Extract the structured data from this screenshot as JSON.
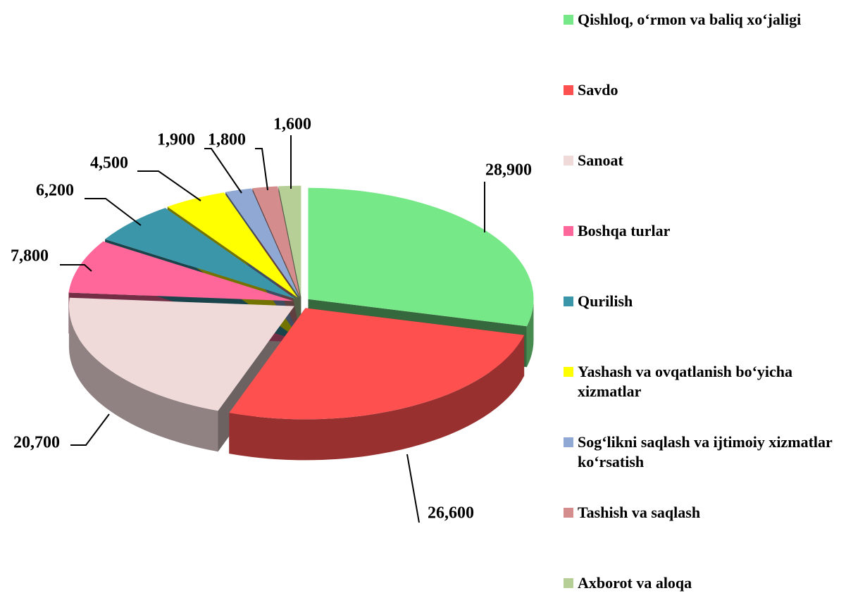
{
  "chart_data": {
    "type": "pie",
    "categories": [
      "Qishloq, o‘rmon va baliq xo‘jaligi",
      "Savdo",
      "Sanoat",
      "Boshqa turlar",
      "Qurilish",
      "Yashash va ovqatlanish bo‘yicha xizmatlar",
      "Sog‘likni saqlash va ijtimoiy xizmatlar ko‘rsatish",
      "Tashish va saqlash",
      "Axborot va aloqa"
    ],
    "values": [
      28900,
      26600,
      20700,
      7800,
      6200,
      4500,
      1900,
      1800,
      1600
    ],
    "value_labels": [
      "28,900",
      "26,600",
      "20,700",
      "7,800",
      "6,200",
      "4,500",
      "1,900",
      "1,800",
      "1,600"
    ],
    "colors": [
      "#77e887",
      "#ff5050",
      "#f0d9d9",
      "#ff6699",
      "#3a96a8",
      "#ffff00",
      "#8fa8d4",
      "#d48c8c",
      "#b5cf96"
    ],
    "legend": "right"
  }
}
